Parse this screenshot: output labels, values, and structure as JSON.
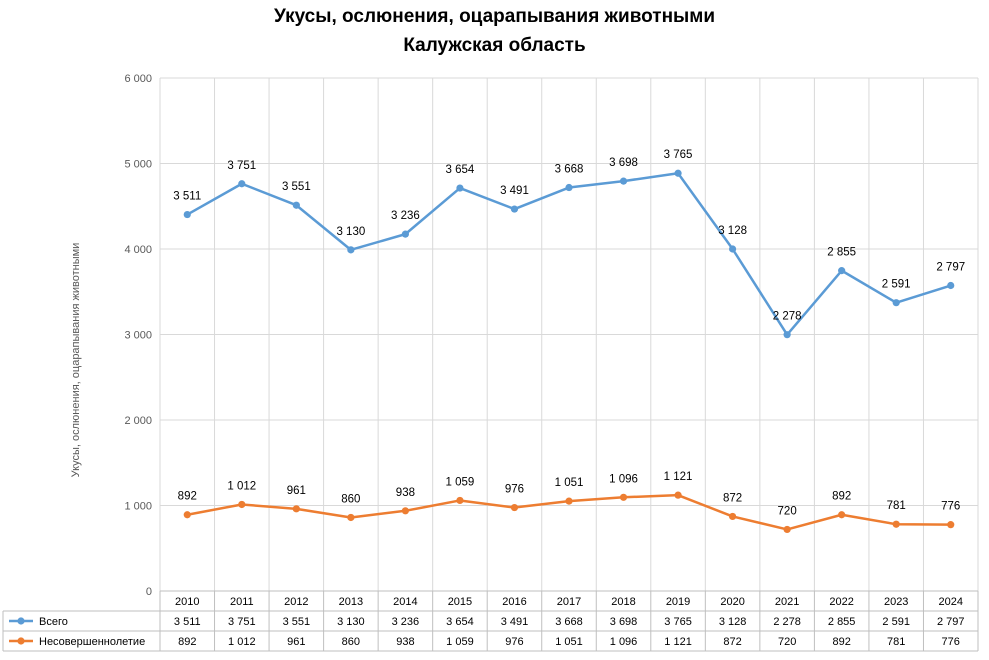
{
  "chart_data": {
    "type": "line",
    "title": "Укусы, ослюнения, оцарапывания животными",
    "subtitle": "Калужская область",
    "ylabel": "Укусы, ослюнения, оцарапывания животными",
    "ylim": [
      0,
      6000
    ],
    "yticks": [
      "0",
      "1 000",
      "2 000",
      "3 000",
      "4 000",
      "5 000",
      "6 000"
    ],
    "grid": true,
    "legend": "data-table",
    "categories": [
      "2010",
      "2011",
      "2012",
      "2013",
      "2014",
      "2015",
      "2016",
      "2017",
      "2018",
      "2019",
      "2020",
      "2021",
      "2022",
      "2023",
      "2024"
    ],
    "series": [
      {
        "name": "Всего",
        "color": "#5b9bd5",
        "values": [
          4403,
          4763,
          4512,
          3990,
          4174,
          4713,
          4467,
          4719,
          4794,
          4886,
          4000,
          2998,
          3747,
          3372,
          3573
        ],
        "labels": [
          "3 511",
          "3 751",
          "3 551",
          "3 130",
          "3 236",
          "3 654",
          "3 491",
          "3 668",
          "3 698",
          "3 765",
          "3 128",
          "2 278",
          "2 855",
          "2 591",
          "2 797"
        ]
      },
      {
        "name": "Несовершеннолетие",
        "color": "#ed7d31",
        "values": [
          892,
          1012,
          961,
          860,
          938,
          1059,
          976,
          1051,
          1096,
          1121,
          872,
          720,
          892,
          781,
          776
        ],
        "labels": [
          "892",
          "1 012",
          "961",
          "860",
          "938",
          "1 059",
          "976",
          "1 051",
          "1 096",
          "1 121",
          "872",
          "720",
          "892",
          "781",
          "776"
        ]
      }
    ]
  }
}
